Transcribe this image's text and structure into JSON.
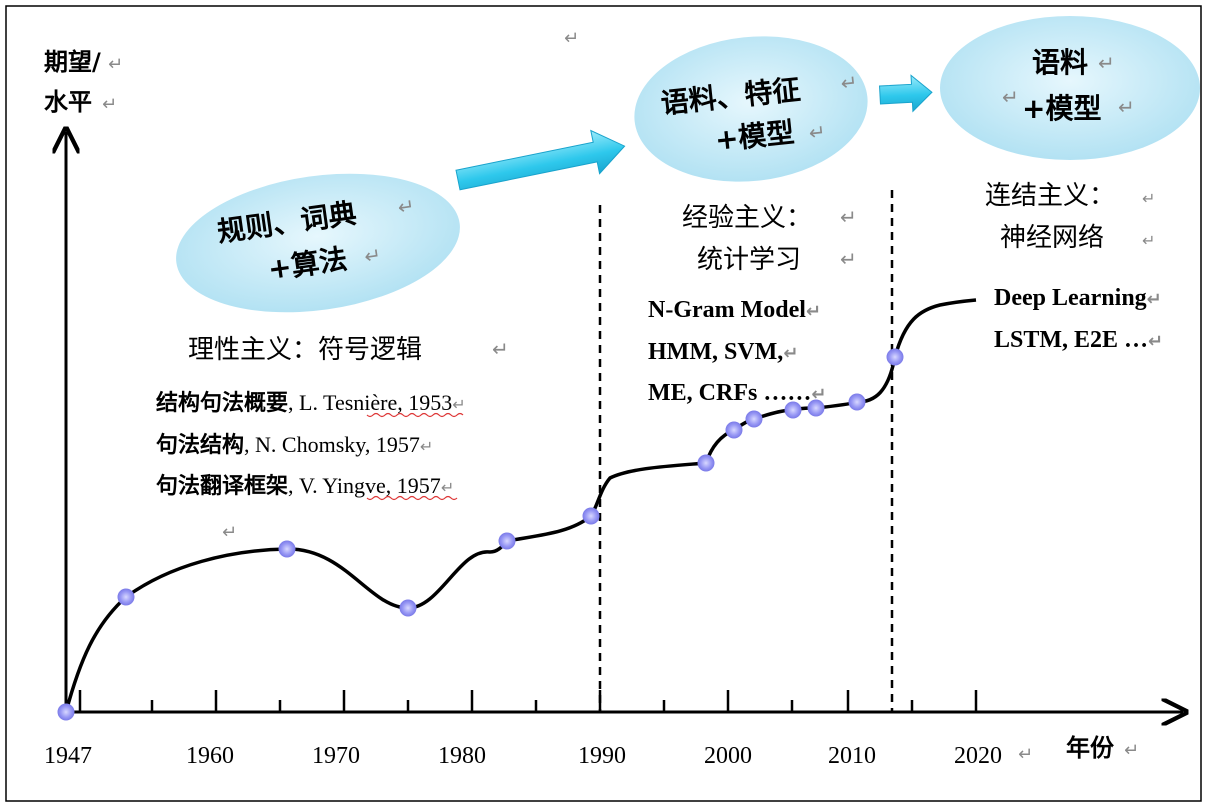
{
  "y_axis_label": [
    "期望/",
    "水平"
  ],
  "x_axis_label": "年份",
  "x_ticks": [
    "1947",
    "1960",
    "1970",
    "1980",
    "1990",
    "2000",
    "2010",
    "2020"
  ],
  "return_mark": "↵",
  "bubbles": [
    {
      "line1": "规则、词典",
      "line2": "+算法"
    },
    {
      "line1": "语料、特征",
      "line2": "+模型"
    },
    {
      "line1": "语料",
      "line2": "+模型"
    }
  ],
  "eras": [
    {
      "heading": [
        "理性主义：符号逻辑"
      ],
      "refs": [
        {
          "cn": "结构句法概要",
          "rest": ", L. Tesnière, 1953"
        },
        {
          "cn": "句法结构",
          "rest": ", N. Chomsky, 1957"
        },
        {
          "cn": "句法翻译框架",
          "rest": ", V. Yingve, 1957"
        }
      ]
    },
    {
      "heading": [
        "经验主义：",
        "统计学习"
      ],
      "methods": [
        "N-Gram Model",
        "HMM, SVM,",
        "ME, CRFs ……"
      ]
    },
    {
      "heading": [
        "连结主义：",
        "神经网络"
      ],
      "methods": [
        "Deep Learning",
        "LSTM, E2E …"
      ]
    }
  ],
  "colors": {
    "bubble_fill": "#bfe7f5",
    "arrow_fill": "#3fd0ef",
    "point_fill": "#8f8ff0",
    "curve": "#000000"
  }
}
